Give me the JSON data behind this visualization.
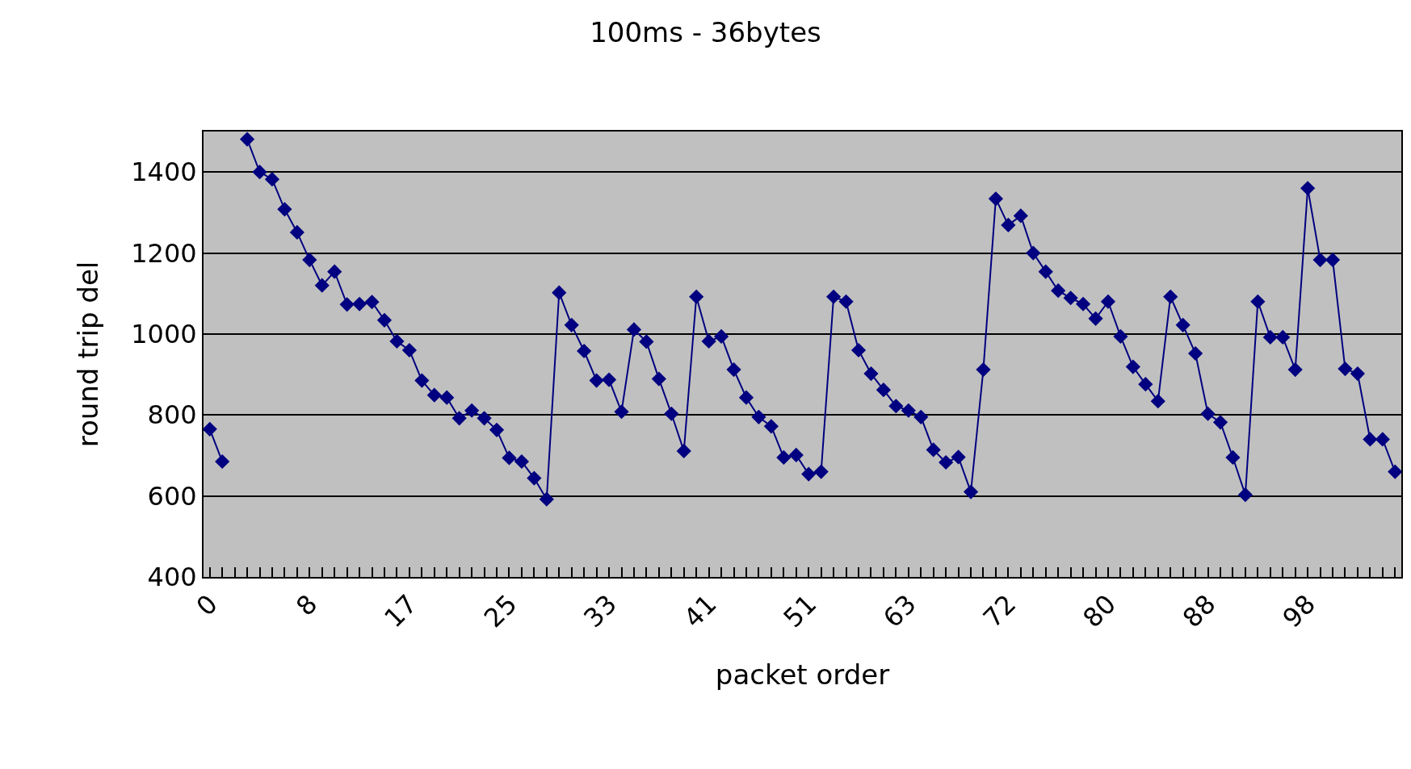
{
  "chart_data": {
    "type": "line",
    "title": "100ms - 36bytes",
    "xlabel": "packet order",
    "ylabel": "round trip del",
    "categories": [
      "0",
      null,
      null,
      null,
      null,
      null,
      null,
      null,
      "8",
      null,
      null,
      null,
      null,
      null,
      null,
      null,
      "17",
      null,
      null,
      null,
      null,
      null,
      null,
      null,
      "25",
      null,
      null,
      null,
      null,
      null,
      null,
      null,
      "33",
      null,
      null,
      null,
      null,
      null,
      null,
      null,
      "41",
      null,
      null,
      null,
      null,
      null,
      null,
      null,
      "51",
      null,
      null,
      null,
      null,
      null,
      null,
      null,
      "63",
      null,
      null,
      null,
      null,
      null,
      null,
      null,
      "72",
      null,
      null,
      null,
      null,
      null,
      null,
      null,
      "80",
      null,
      null,
      null,
      null,
      null,
      null,
      null,
      "88",
      null,
      null,
      null,
      null,
      null,
      null,
      null,
      "98",
      null,
      null,
      null,
      null,
      null,
      null,
      null
    ],
    "series": [
      {
        "color": "#000080",
        "values": [
          765,
          685,
          null,
          1481,
          1400,
          1382,
          1308,
          1251,
          1183,
          1120,
          1154,
          1073,
          1074,
          1079,
          1034,
          982,
          960,
          885,
          849,
          843,
          792,
          811,
          792,
          763,
          694,
          685,
          644,
          592,
          1102,
          1022,
          958,
          885,
          887,
          808,
          1011,
          981,
          889,
          803,
          711,
          1092,
          982,
          994,
          912,
          843,
          795,
          772,
          695,
          701,
          654,
          660,
          1092,
          1080,
          960,
          902,
          862,
          822,
          811,
          795,
          714,
          683,
          696,
          610,
          912,
          1334,
          1269,
          1292,
          1200,
          1154,
          1107,
          1089,
          1074,
          1038,
          1080,
          994,
          919,
          876,
          834,
          1092,
          1022,
          952,
          803,
          782,
          695,
          603,
          1080,
          992,
          992,
          912,
          1360,
          1183,
          1183,
          914,
          902,
          740,
          740,
          660
        ]
      }
    ],
    "ylim": [
      400,
      1500
    ],
    "yticks": [
      400,
      600,
      800,
      1000,
      1200,
      1400
    ],
    "grid": "y",
    "marker": "diamond",
    "line_style": "solid"
  }
}
